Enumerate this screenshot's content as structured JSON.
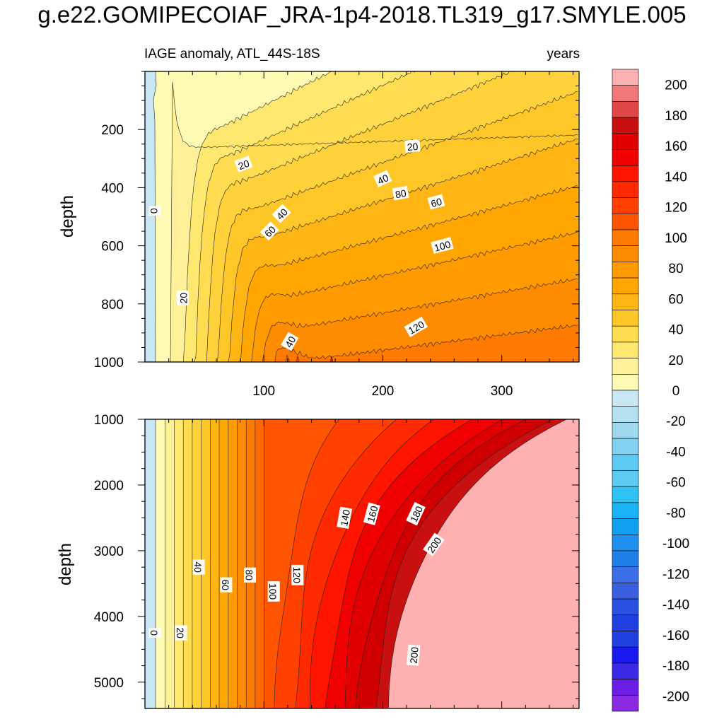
{
  "title": "g.e22.GOMIPECOIAF_JRA-1p4-2018.TL319_g17.SMYLE.005",
  "colors": {
    "neg": [
      "#8a2be2",
      "#6a1ee6",
      "#3a2ae6",
      "#1a1aee",
      "#1f3fe0",
      "#2a50e0",
      "#3a60e0",
      "#3c6ee8",
      "#1f7fe8",
      "#1f90f0",
      "#10a0f0",
      "#1ab4f5",
      "#2ec2f5",
      "#5ccaf2",
      "#80d2f0",
      "#a0d8ee",
      "#b4e0f0",
      "#c8e6f4"
    ],
    "pos": [
      "#fffab4",
      "#fff09a",
      "#ffe870",
      "#ffdc50",
      "#ffd23c",
      "#ffc628",
      "#ffb614",
      "#ffa600",
      "#ff9a00",
      "#ff8c00",
      "#ff7a00",
      "#ff6a00",
      "#ff5500",
      "#ff4000",
      "#ff2a00",
      "#ff1400",
      "#f00000",
      "#e00000",
      "#d00000",
      "#c81010",
      "#e04848",
      "#f07878",
      "#ffb0b0"
    ]
  },
  "chart_data": [
    {
      "type": "contour",
      "title": "IAGE anomaly, ATL_44S-18S",
      "units_label": "years",
      "xlabel": "",
      "ylabel": "depth",
      "xlim": [
        0,
        365
      ],
      "ylim": [
        1000,
        0
      ],
      "xticks": [
        100,
        200,
        300
      ],
      "yticks": [
        200,
        400,
        600,
        800,
        1000
      ],
      "contour_levels": [
        0,
        10,
        20,
        30,
        40,
        50,
        60,
        70,
        80,
        90,
        100,
        110,
        120,
        130,
        140,
        150,
        160,
        170
      ],
      "contour_labels": [
        {
          "text": "0",
          "x": 8,
          "y": 480,
          "angle": 90
        },
        {
          "text": "20",
          "x": 32,
          "y": 780,
          "angle": -90
        },
        {
          "text": "20",
          "x": 83,
          "y": 320,
          "angle": -20
        },
        {
          "text": "20",
          "x": 225,
          "y": 258,
          "angle": -5
        },
        {
          "text": "40",
          "x": 122,
          "y": 930,
          "angle": -60
        },
        {
          "text": "40",
          "x": 115,
          "y": 490,
          "angle": -45
        },
        {
          "text": "40",
          "x": 200,
          "y": 370,
          "angle": -25
        },
        {
          "text": "60",
          "x": 105,
          "y": 550,
          "angle": -45
        },
        {
          "text": "60",
          "x": 245,
          "y": 450,
          "angle": -15
        },
        {
          "text": "80",
          "x": 215,
          "y": 420,
          "angle": -10
        },
        {
          "text": "100",
          "x": 250,
          "y": 600,
          "angle": -15
        },
        {
          "text": "120",
          "x": 228,
          "y": 880,
          "angle": -30
        }
      ]
    },
    {
      "type": "contour",
      "title": "",
      "xlabel": "",
      "ylabel": "depth",
      "xlim": [
        0,
        365
      ],
      "ylim": [
        5400,
        1000
      ],
      "yticks": [
        1000,
        2000,
        3000,
        4000,
        5000
      ],
      "contour_labels": [
        {
          "text": "0",
          "x": 8,
          "y": 4250,
          "angle": 90
        },
        {
          "text": "20",
          "x": 30,
          "y": 4250,
          "angle": 90
        },
        {
          "text": "40",
          "x": 45,
          "y": 3250,
          "angle": 90
        },
        {
          "text": "60",
          "x": 68,
          "y": 3520,
          "angle": 90
        },
        {
          "text": "80",
          "x": 88,
          "y": 3370,
          "angle": 90
        },
        {
          "text": "100",
          "x": 108,
          "y": 3620,
          "angle": 90
        },
        {
          "text": "120",
          "x": 128,
          "y": 3370,
          "angle": 90
        },
        {
          "text": "140",
          "x": 168,
          "y": 2500,
          "angle": -80
        },
        {
          "text": "160",
          "x": 191,
          "y": 2440,
          "angle": -75
        },
        {
          "text": "180",
          "x": 228,
          "y": 2440,
          "angle": -65
        },
        {
          "text": "200",
          "x": 243,
          "y": 2910,
          "angle": -55
        },
        {
          "text": "200",
          "x": 226,
          "y": 4590,
          "angle": -85
        }
      ]
    },
    {
      "type": "colorbar",
      "levels": [
        -200,
        -190,
        -180,
        -170,
        -160,
        -150,
        -140,
        -130,
        -120,
        -110,
        -100,
        -90,
        -80,
        -70,
        -60,
        -50,
        -40,
        -30,
        -20,
        -10,
        0,
        10,
        20,
        30,
        40,
        50,
        60,
        70,
        80,
        90,
        100,
        110,
        120,
        130,
        140,
        150,
        160,
        170,
        180,
        190,
        200
      ],
      "tick_labels": [
        "200",
        "180",
        "160",
        "140",
        "120",
        "100",
        "80",
        "60",
        "40",
        "20",
        "0",
        "-20",
        "-40",
        "-60",
        "-80",
        "-100",
        "-120",
        "-140",
        "-160",
        "-180",
        "-200"
      ]
    }
  ]
}
